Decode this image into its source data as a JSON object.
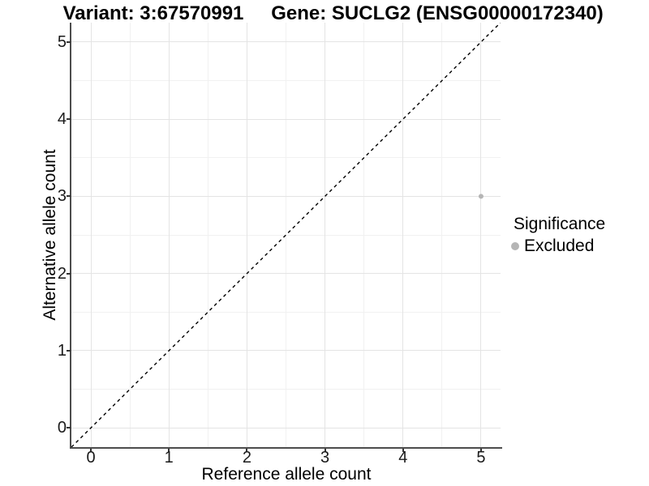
{
  "titles": {
    "variant": "Variant: 3:67570991",
    "gene": "Gene: SUCLG2 (ENSG00000172340)"
  },
  "chart_data": {
    "type": "scatter",
    "xlabel": "Reference allele count",
    "ylabel": "Alternative allele count",
    "xlim": [
      -0.25,
      5.25
    ],
    "ylim": [
      -0.25,
      5.25
    ],
    "xticks": [
      0,
      1,
      2,
      3,
      4,
      5
    ],
    "yticks": [
      0,
      1,
      2,
      3,
      4,
      5
    ],
    "minor_xticks": [
      0.5,
      1.5,
      2.5,
      3.5,
      4.5
    ],
    "minor_yticks": [
      0.5,
      1.5,
      2.5,
      3.5,
      4.5
    ],
    "grid": true,
    "reference_line": {
      "kind": "y=x",
      "style": "dashed",
      "color": "#000000"
    },
    "series": [
      {
        "name": "Excluded",
        "color": "#b5b5b5",
        "points": [
          {
            "x": 5,
            "y": 3
          }
        ]
      }
    ],
    "legend": {
      "position": "right",
      "title": "Significance",
      "items": [
        {
          "label": "Excluded",
          "color": "#b5b5b5"
        }
      ]
    },
    "colors": {
      "grid_major": "#e4e4e4",
      "grid_minor": "#f1f1f1",
      "axis_line": "#4d4d4d",
      "tick": "#333333"
    }
  }
}
